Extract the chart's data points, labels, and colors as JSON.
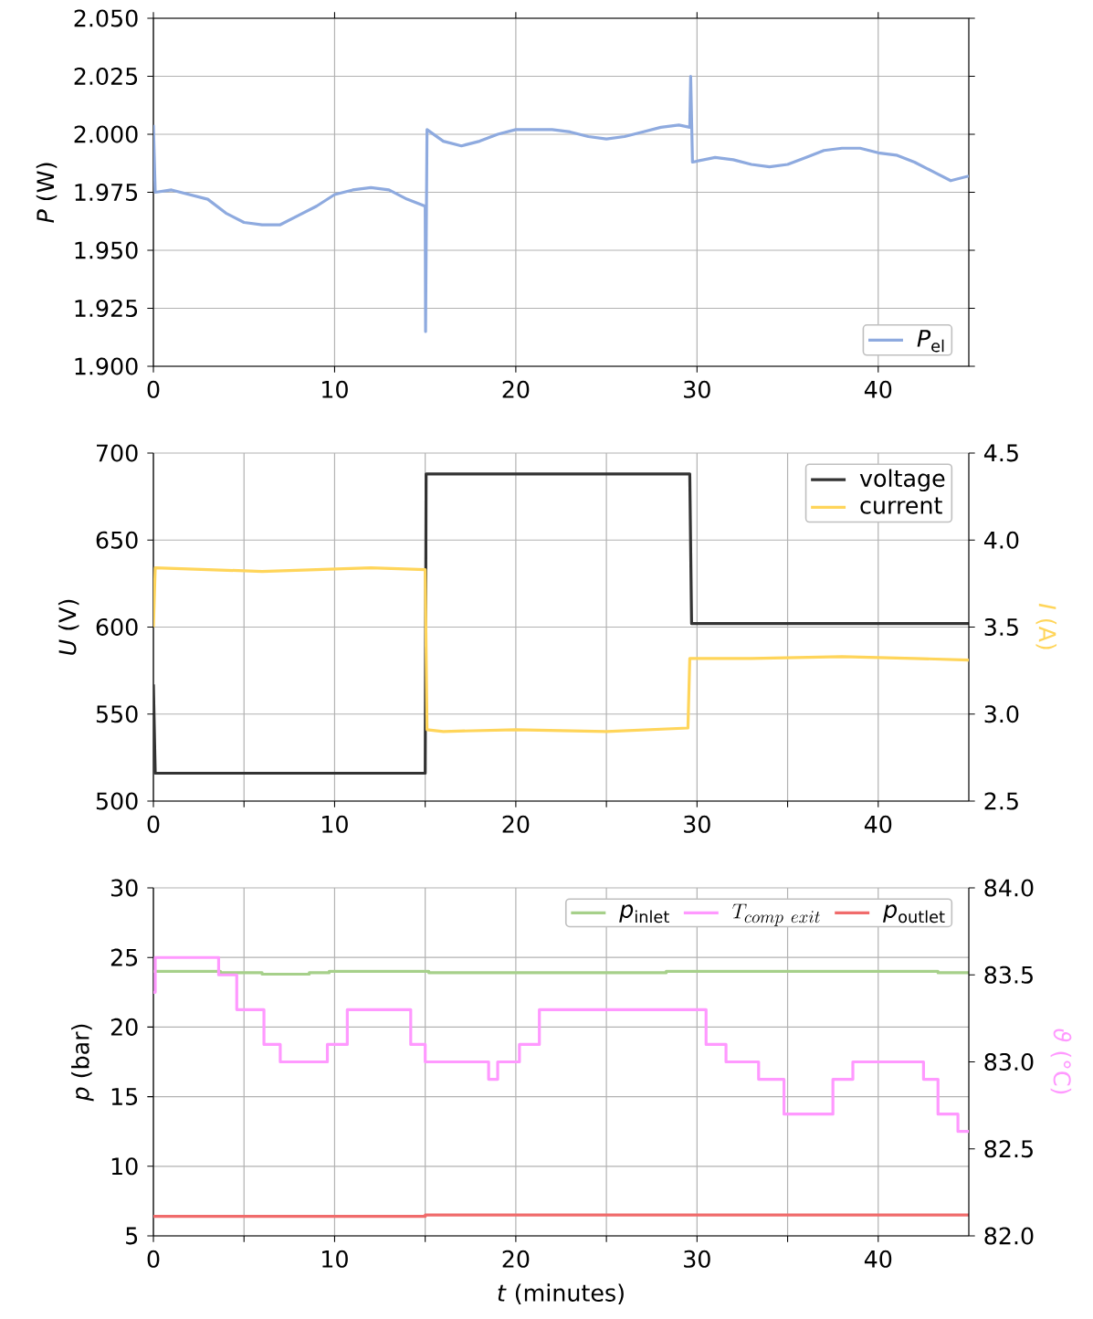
{
  "chart_data": [
    {
      "type": "line",
      "ylabel": "*P* (W)",
      "xlim": [
        0,
        45
      ],
      "xticks": [
        0,
        10,
        20,
        30,
        40
      ],
      "ylim": [
        1.9,
        2.05
      ],
      "yticks": [
        {
          "value": 1.9,
          "label": "1.900"
        },
        {
          "value": 1.925,
          "label": "1.925"
        },
        {
          "value": 1.95,
          "label": "1.950"
        },
        {
          "value": 1.975,
          "label": "1.975"
        },
        {
          "value": 2.0,
          "label": "2.000"
        },
        {
          "value": 2.025,
          "label": "2.025"
        },
        {
          "value": 2.05,
          "label": "2.050"
        }
      ],
      "grid": true,
      "legend": "bottom right",
      "series": [
        {
          "name": "*P*$_{el}$",
          "color": "#8eaadf",
          "x": [
            0,
            0.1,
            1,
            2,
            3,
            4,
            5,
            6,
            7,
            8,
            9,
            10,
            11,
            12,
            13,
            14,
            15,
            15.02,
            15.1,
            16,
            17,
            18,
            19,
            20,
            21,
            22,
            23,
            24,
            25,
            26,
            27,
            28,
            29,
            29.6,
            29.65,
            29.75,
            31,
            32,
            33,
            34,
            35,
            36,
            37,
            38,
            39,
            40,
            41,
            42,
            43,
            44,
            45
          ],
          "values": [
            2.004,
            1.975,
            1.976,
            1.974,
            1.972,
            1.966,
            1.962,
            1.961,
            1.961,
            1.965,
            1.969,
            1.974,
            1.976,
            1.977,
            1.976,
            1.972,
            1.969,
            1.915,
            2.002,
            1.997,
            1.995,
            1.997,
            2.0,
            2.002,
            2.002,
            2.002,
            2.001,
            1.999,
            1.998,
            1.999,
            2.001,
            2.003,
            2.004,
            2.003,
            2.025,
            1.988,
            1.99,
            1.989,
            1.987,
            1.986,
            1.987,
            1.99,
            1.993,
            1.994,
            1.994,
            1.992,
            1.991,
            1.988,
            1.984,
            1.98,
            1.982
          ]
        }
      ]
    },
    {
      "type": "line",
      "ylabel": "*U* (V)",
      "y2label": "*I* (A)",
      "xlim": [
        0,
        45
      ],
      "xticks": [
        0,
        {
          "value": 5,
          "label": null
        },
        10,
        {
          "value": 15,
          "label": null
        },
        20,
        {
          "value": 25,
          "label": null
        },
        30,
        {
          "value": 35,
          "label": null
        },
        40
      ],
      "ylim": [
        500,
        700
      ],
      "yticks": [
        500,
        550,
        600,
        650,
        700
      ],
      "y2lim": [
        2.5,
        4.5
      ],
      "y2ticks": [
        2.5,
        {
          "value": 3.0,
          "label": "3.0"
        },
        3.5,
        {
          "value": 4.0,
          "label": "4.0"
        },
        4.5
      ],
      "grid": true,
      "legend": "top right",
      "series": [
        {
          "name": "voltage",
          "color": "#333333",
          "x": [
            0,
            0.1,
            15.0,
            15.05,
            29.6,
            29.7,
            45
          ],
          "values": [
            567,
            516,
            516,
            688,
            688,
            602,
            602
          ]
        },
        {
          "name": "current",
          "color": "#ffd55a",
          "axis": "y2",
          "x": [
            0,
            0.1,
            3,
            6,
            9,
            12,
            15.0,
            15.1,
            16,
            20,
            25,
            29.5,
            29.6,
            33,
            38,
            42,
            45
          ],
          "values": [
            3.5,
            3.84,
            3.83,
            3.82,
            3.83,
            3.84,
            3.83,
            2.91,
            2.9,
            2.91,
            2.9,
            2.92,
            3.32,
            3.32,
            3.33,
            3.32,
            3.31
          ]
        }
      ]
    },
    {
      "type": "line",
      "xlabel": "*t* (minutes)",
      "ylabel": "*p* (bar)",
      "y2label": "*ϑ* (°C)",
      "xlim": [
        0,
        45
      ],
      "xticks": [
        0,
        {
          "value": 5,
          "label": null
        },
        10,
        {
          "value": 15,
          "label": null
        },
        20,
        {
          "value": 25,
          "label": null
        },
        30,
        {
          "value": 35,
          "label": null
        },
        40
      ],
      "ylim": [
        5,
        30
      ],
      "yticks": [
        5,
        10,
        15,
        20,
        25,
        30
      ],
      "y2lim": [
        82,
        84
      ],
      "y2ticks": [
        {
          "value": 82,
          "label": "82.0"
        },
        82.5,
        {
          "value": 83,
          "label": "83.0"
        },
        83.5,
        {
          "value": 84,
          "label": "84.0"
        }
      ],
      "grid": true,
      "legend": "top right",
      "series": [
        {
          "name": "*p*$_{inlet}$",
          "type": "step",
          "color": "#a6d08a",
          "x": [
            0,
            3.7,
            6.0,
            8.6,
            9.7,
            15.2,
            28.3,
            43.3,
            45
          ],
          "values": [
            24.0,
            23.9,
            23.8,
            23.9,
            24.0,
            23.9,
            24.0,
            23.9,
            23.9
          ]
        },
        {
          "name": "T_{comp\\ exit}",
          "type": "step",
          "color": "#ff99ff",
          "axis": "y2",
          "x": [
            0,
            0.1,
            3.6,
            4.6,
            6.1,
            7.0,
            9.6,
            10.7,
            14.2,
            15.0,
            18.5,
            19.0,
            20.2,
            21.3,
            30.5,
            31.6,
            33.4,
            34.8,
            37.5,
            38.6,
            42.5,
            43.3,
            44.4,
            45
          ],
          "values": [
            83.4,
            83.6,
            83.5,
            83.3,
            83.1,
            83.0,
            83.1,
            83.3,
            83.1,
            83.0,
            82.9,
            83.0,
            83.1,
            83.3,
            83.1,
            83.0,
            82.9,
            82.7,
            82.9,
            83.0,
            82.9,
            82.7,
            82.6,
            82.6
          ]
        },
        {
          "name": "*p*$_{outlet}$",
          "type": "step",
          "color": "#f06b6b",
          "x": [
            0,
            15,
            45
          ],
          "values": [
            6.4,
            6.5,
            6.5
          ]
        }
      ]
    }
  ]
}
